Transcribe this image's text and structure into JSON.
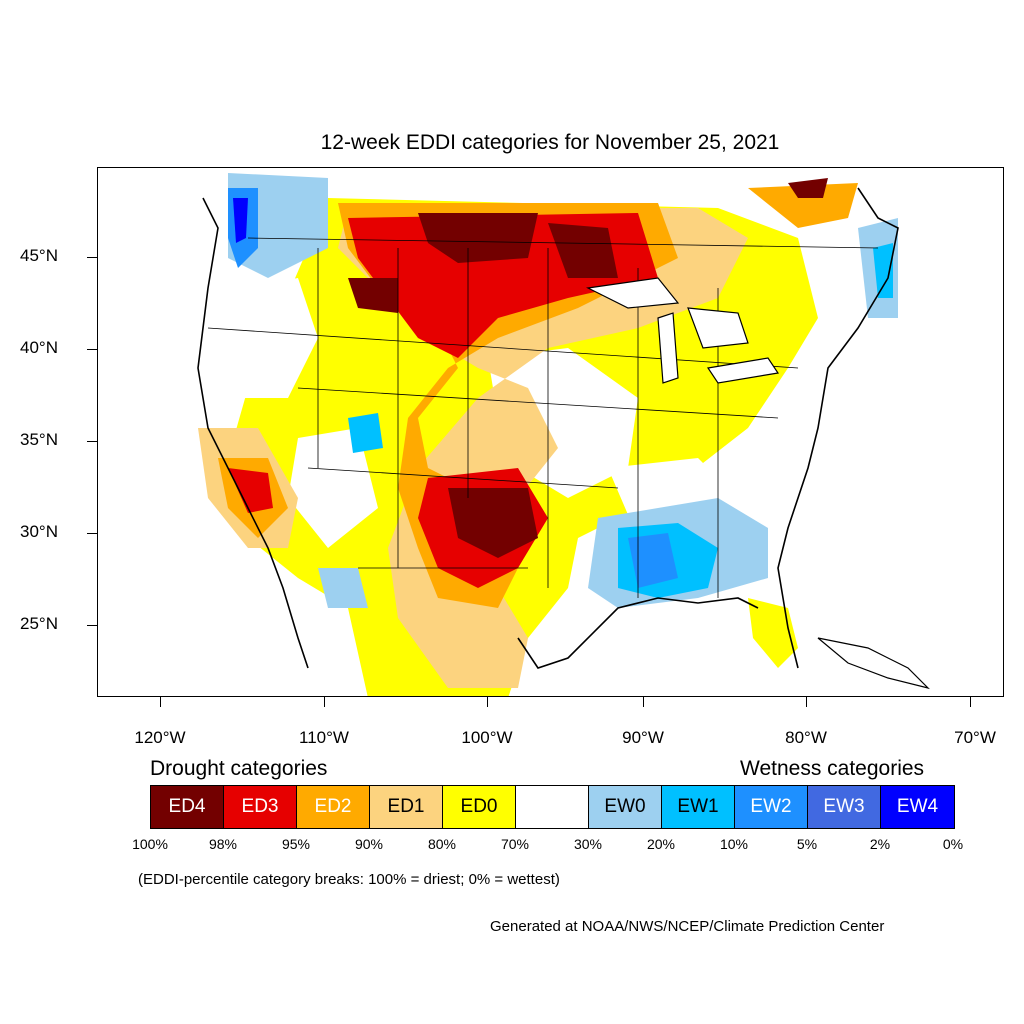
{
  "title": "12-week EDDI categories for November 25, 2021",
  "latitude_labels": [
    "45°N",
    "40°N",
    "35°N",
    "30°N",
    "25°N"
  ],
  "longitude_labels": [
    "120°W",
    "110°W",
    "100°W",
    "90°W",
    "80°W",
    "70°W"
  ],
  "legend": {
    "drought_heading": "Drought categories",
    "wetness_heading": "Wetness categories",
    "categories": [
      {
        "label": "ED4",
        "color": "#730000",
        "text_color": "#ffffff"
      },
      {
        "label": "ED3",
        "color": "#e60000",
        "text_color": "#ffffff"
      },
      {
        "label": "ED2",
        "color": "#ffaa00",
        "text_color": "#ffffff"
      },
      {
        "label": "ED1",
        "color": "#fcd37f",
        "text_color": "#000000"
      },
      {
        "label": "ED0",
        "color": "#ffff00",
        "text_color": "#000000"
      },
      {
        "label": "",
        "color": "#ffffff",
        "text_color": "#000000"
      },
      {
        "label": "EW0",
        "color": "#9dd0f0",
        "text_color": "#000000"
      },
      {
        "label": "EW1",
        "color": "#00c0ff",
        "text_color": "#000000"
      },
      {
        "label": "EW2",
        "color": "#1e90ff",
        "text_color": "#ffffff"
      },
      {
        "label": "EW3",
        "color": "#4169e1",
        "text_color": "#ffffff"
      },
      {
        "label": "EW4",
        "color": "#0000ff",
        "text_color": "#ffffff"
      }
    ],
    "breaks": [
      "100%",
      "98%",
      "95%",
      "90%",
      "80%",
      "70%",
      "30%",
      "20%",
      "10%",
      "5%",
      "2%",
      "0%"
    ]
  },
  "note": "(EDDI-percentile category breaks: 100% = driest; 0% = wettest)",
  "credit": "Generated at NOAA/NWS/NCEP/Climate Prediction Center"
}
